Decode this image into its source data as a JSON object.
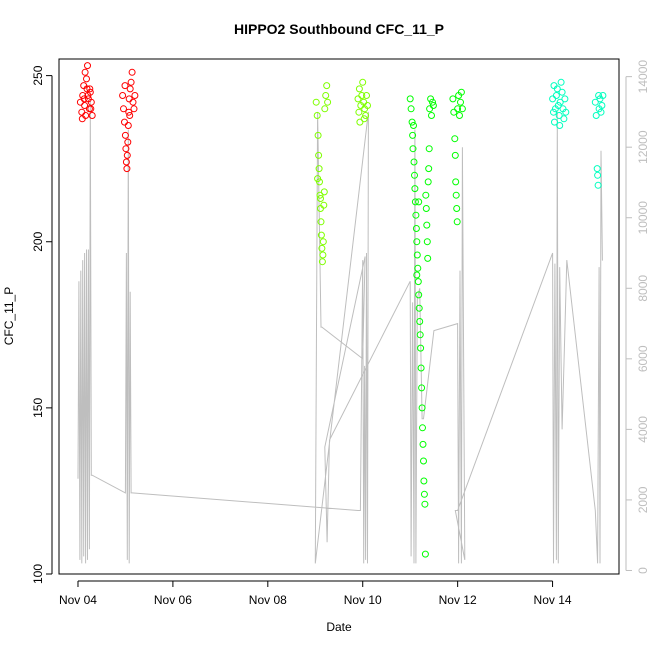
{
  "chart_data": {
    "type": "scatter",
    "title": "HIPPO2 Southbound CFC_11_P",
    "xlabel": "Date",
    "ylabel": "CFC_11_P",
    "x_ticks": [
      "Nov 04",
      "Nov 06",
      "Nov 08",
      "Nov 10",
      "Nov 12",
      "Nov 14"
    ],
    "x_tick_values": [
      0,
      2,
      4,
      6,
      8,
      10
    ],
    "xlim": [
      -0.4,
      11.4
    ],
    "ylim": [
      100,
      255
    ],
    "y_ticks": [
      100,
      150,
      200,
      250
    ],
    "y2lim": [
      -100,
      14500
    ],
    "y2_ticks": [
      0,
      2000,
      4000,
      6000,
      8000,
      10000,
      12000,
      14000
    ],
    "y2_color": "#bebebe",
    "grid": false,
    "legend": "none",
    "series": [
      {
        "color": "#ff0000",
        "points": [
          [
            0.05,
            242
          ],
          [
            0.08,
            239
          ],
          [
            0.1,
            244
          ],
          [
            0.12,
            247
          ],
          [
            0.14,
            241
          ],
          [
            0.16,
            238
          ],
          [
            0.18,
            249
          ],
          [
            0.2,
            253
          ],
          [
            0.22,
            243
          ],
          [
            0.24,
            240
          ],
          [
            0.26,
            245
          ],
          [
            0.28,
            242
          ],
          [
            0.3,
            238
          ],
          [
            0.15,
            251
          ],
          [
            0.25,
            246
          ],
          [
            0.09,
            237
          ],
          [
            0.21,
            244
          ],
          [
            0.27,
            240
          ],
          [
            0.13,
            243
          ],
          [
            0.19,
            246
          ],
          [
            0.94,
            244
          ],
          [
            0.96,
            240
          ],
          [
            0.98,
            236
          ],
          [
            1.0,
            232
          ],
          [
            1.01,
            228
          ],
          [
            1.02,
            224
          ],
          [
            1.03,
            222
          ],
          [
            1.04,
            226
          ],
          [
            1.05,
            230
          ],
          [
            1.06,
            235
          ],
          [
            1.07,
            239
          ],
          [
            1.08,
            243
          ],
          [
            1.1,
            246
          ],
          [
            1.12,
            248
          ],
          [
            1.14,
            251
          ],
          [
            1.16,
            242
          ],
          [
            1.18,
            240
          ],
          [
            1.2,
            244
          ],
          [
            0.99,
            247
          ],
          [
            1.09,
            238
          ]
        ]
      },
      {
        "color": "#7fff00",
        "points": [
          [
            5.02,
            242
          ],
          [
            5.04,
            238
          ],
          [
            5.06,
            232
          ],
          [
            5.07,
            226
          ],
          [
            5.08,
            222
          ],
          [
            5.09,
            218
          ],
          [
            5.1,
            214
          ],
          [
            5.11,
            210
          ],
          [
            5.12,
            206
          ],
          [
            5.13,
            202
          ],
          [
            5.14,
            198
          ],
          [
            5.15,
            194
          ],
          [
            5.16,
            196
          ],
          [
            5.17,
            200
          ],
          [
            5.18,
            211
          ],
          [
            5.19,
            215
          ],
          [
            5.2,
            240
          ],
          [
            5.22,
            244
          ],
          [
            5.24,
            247
          ],
          [
            5.26,
            242
          ],
          [
            5.05,
            219
          ],
          [
            5.11,
            213
          ],
          [
            5.9,
            243
          ],
          [
            5.92,
            239
          ],
          [
            5.94,
            236
          ],
          [
            5.96,
            241
          ],
          [
            5.98,
            244
          ],
          [
            6.0,
            248
          ],
          [
            6.02,
            242
          ],
          [
            6.04,
            240
          ],
          [
            6.06,
            238
          ],
          [
            6.08,
            244
          ],
          [
            6.1,
            241
          ],
          [
            5.93,
            246
          ],
          [
            6.03,
            237
          ]
        ]
      },
      {
        "color": "#00ff00",
        "points": [
          [
            7.0,
            243
          ],
          [
            7.02,
            240
          ],
          [
            7.04,
            236
          ],
          [
            7.05,
            232
          ],
          [
            7.06,
            228
          ],
          [
            7.08,
            224
          ],
          [
            7.09,
            220
          ],
          [
            7.1,
            216
          ],
          [
            7.11,
            212
          ],
          [
            7.12,
            208
          ],
          [
            7.13,
            204
          ],
          [
            7.14,
            200
          ],
          [
            7.15,
            196
          ],
          [
            7.16,
            192
          ],
          [
            7.17,
            188
          ],
          [
            7.18,
            184
          ],
          [
            7.19,
            180
          ],
          [
            7.2,
            176
          ],
          [
            7.21,
            172
          ],
          [
            7.22,
            168
          ],
          [
            7.23,
            162
          ],
          [
            7.24,
            156
          ],
          [
            7.25,
            150
          ],
          [
            7.26,
            144
          ],
          [
            7.27,
            139
          ],
          [
            7.28,
            134
          ],
          [
            7.29,
            128
          ],
          [
            7.3,
            124
          ],
          [
            7.31,
            121
          ],
          [
            7.32,
            106
          ],
          [
            7.33,
            214
          ],
          [
            7.34,
            210
          ],
          [
            7.35,
            205
          ],
          [
            7.36,
            200
          ],
          [
            7.37,
            195
          ],
          [
            7.38,
            218
          ],
          [
            7.39,
            222
          ],
          [
            7.4,
            228
          ],
          [
            7.41,
            240
          ],
          [
            7.43,
            243
          ],
          [
            7.45,
            238
          ],
          [
            7.47,
            242
          ],
          [
            7.49,
            241
          ],
          [
            7.07,
            235
          ],
          [
            7.14,
            190
          ],
          [
            7.18,
            212
          ],
          [
            7.9,
            243
          ],
          [
            7.92,
            239
          ],
          [
            7.94,
            231
          ],
          [
            7.95,
            226
          ],
          [
            7.96,
            218
          ],
          [
            7.97,
            214
          ],
          [
            7.98,
            210
          ],
          [
            7.99,
            206
          ],
          [
            8.0,
            240
          ],
          [
            8.02,
            244
          ],
          [
            8.04,
            238
          ],
          [
            8.06,
            242
          ],
          [
            8.08,
            245
          ],
          [
            8.1,
            240
          ]
        ]
      },
      {
        "color": "#00ffbf",
        "points": [
          [
            10.0,
            243
          ],
          [
            10.02,
            239
          ],
          [
            10.04,
            236
          ],
          [
            10.06,
            240
          ],
          [
            10.08,
            244
          ],
          [
            10.1,
            246
          ],
          [
            10.12,
            241
          ],
          [
            10.14,
            238
          ],
          [
            10.16,
            242
          ],
          [
            10.18,
            248
          ],
          [
            10.2,
            245
          ],
          [
            10.22,
            240
          ],
          [
            10.24,
            237
          ],
          [
            10.26,
            243
          ],
          [
            10.28,
            239
          ],
          [
            10.03,
            247
          ],
          [
            10.15,
            235
          ],
          [
            10.9,
            242
          ],
          [
            10.92,
            238
          ],
          [
            10.94,
            222
          ],
          [
            10.95,
            220
          ],
          [
            10.96,
            217
          ],
          [
            10.97,
            244
          ],
          [
            10.98,
            240
          ],
          [
            11.0,
            243
          ],
          [
            11.02,
            239
          ],
          [
            11.04,
            241
          ],
          [
            11.06,
            244
          ]
        ]
      },
      {
        "name": "",
        "axis": "y2",
        "color": "#bebebe",
        "line": [
          [
            0.0,
            2600
          ],
          [
            0.02,
            8200
          ],
          [
            0.04,
            300
          ],
          [
            0.06,
            8500
          ],
          [
            0.08,
            200
          ],
          [
            0.1,
            8800
          ],
          [
            0.12,
            400
          ],
          [
            0.14,
            9000
          ],
          [
            0.16,
            200
          ],
          [
            0.18,
            9100
          ],
          [
            0.2,
            300
          ],
          [
            0.22,
            9100
          ],
          [
            0.24,
            600
          ],
          [
            0.26,
            13300
          ],
          [
            0.28,
            2700
          ],
          [
            0.3,
            2700
          ],
          [
            1.0,
            2200
          ],
          [
            1.02,
            9000
          ],
          [
            1.04,
            300
          ],
          [
            1.06,
            12500
          ],
          [
            1.08,
            200
          ],
          [
            1.1,
            7900
          ],
          [
            1.12,
            2200
          ],
          [
            1.14,
            2200
          ],
          [
            5.9,
            1700
          ],
          [
            5.95,
            1700
          ],
          [
            6.0,
            8800
          ],
          [
            6.02,
            200
          ],
          [
            6.04,
            5800
          ],
          [
            6.06,
            300
          ],
          [
            6.08,
            9000
          ],
          [
            6.1,
            200
          ],
          [
            6.12,
            13000
          ],
          [
            5.0,
            200
          ],
          [
            5.05,
            13000
          ],
          [
            5.12,
            6900
          ],
          [
            5.14,
            6900
          ],
          [
            6.0,
            6000
          ],
          [
            6.05,
            8900
          ],
          [
            5.2,
            3500
          ],
          [
            5.25,
            800
          ],
          [
            5.3,
            3700
          ],
          [
            7.0,
            8200
          ],
          [
            7.02,
            400
          ],
          [
            7.05,
            7600
          ],
          [
            7.08,
            200
          ],
          [
            7.1,
            12500
          ],
          [
            7.12,
            200
          ],
          [
            7.15,
            7700
          ],
          [
            7.2,
            8000
          ],
          [
            7.25,
            4300
          ],
          [
            7.28,
            4300
          ],
          [
            7.5,
            6800
          ],
          [
            8.0,
            7000
          ],
          [
            8.02,
            200
          ],
          [
            8.05,
            8500
          ],
          [
            8.08,
            200
          ],
          [
            8.1,
            12000
          ],
          [
            8.15,
            300
          ],
          [
            7.95,
            1700
          ],
          [
            8.0,
            1700
          ],
          [
            10.0,
            9000
          ],
          [
            10.02,
            200
          ],
          [
            10.05,
            8700
          ],
          [
            10.08,
            300
          ],
          [
            10.1,
            13000
          ],
          [
            10.12,
            200
          ],
          [
            10.15,
            8600
          ],
          [
            10.2,
            4000
          ],
          [
            10.25,
            6300
          ],
          [
            10.3,
            8800
          ],
          [
            10.9,
            1700
          ],
          [
            10.95,
            200
          ],
          [
            10.98,
            8600
          ],
          [
            11.0,
            200
          ],
          [
            11.02,
            11900
          ],
          [
            11.05,
            8800
          ],
          [
            11.06,
            8800
          ]
        ]
      }
    ]
  }
}
